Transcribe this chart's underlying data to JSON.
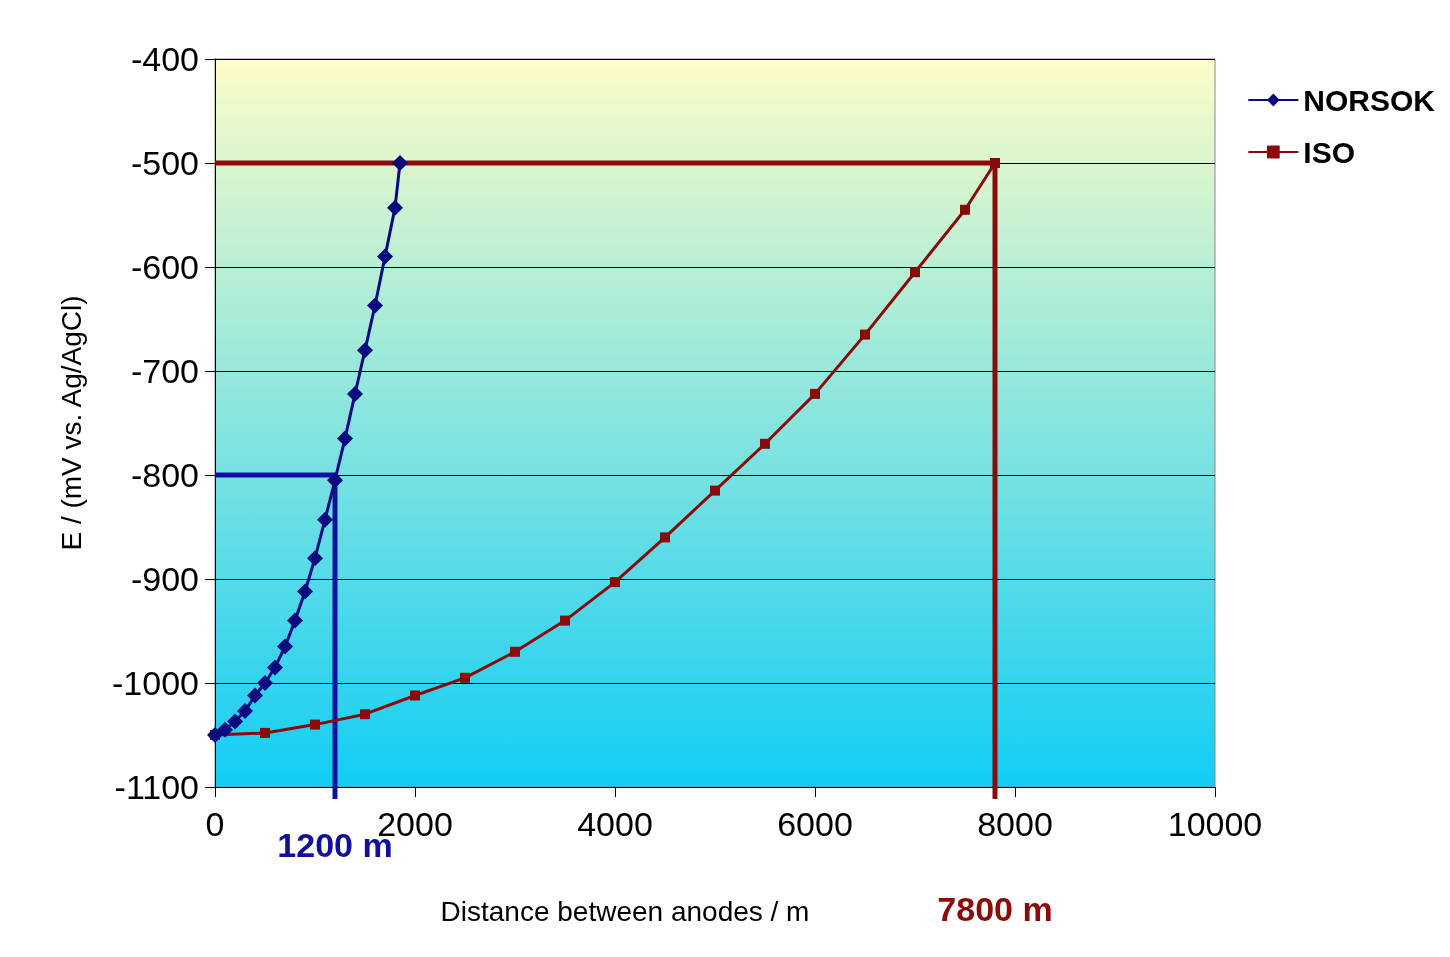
{
  "chart_data": {
    "type": "line",
    "xlabel": "Distance between anodes / m",
    "ylabel": "E / (mV vs. Ag/AgCl)",
    "xlim": [
      0,
      10000
    ],
    "xticks": [
      0,
      2000,
      4000,
      6000,
      8000,
      10000
    ],
    "ylim": [
      -1100,
      -400
    ],
    "yticks": [
      -1100,
      -1000,
      -900,
      -800,
      -700,
      -600,
      -500,
      -400
    ],
    "grid": "y",
    "legend": "top right",
    "series": [
      {
        "name": "NORSOK",
        "color": "#0a0a80",
        "marker": "diamond",
        "x": [
          0,
          100,
          200,
          300,
          400,
          500,
          600,
          700,
          800,
          900,
          1000,
          1100,
          1200,
          1300,
          1400,
          1500,
          1600,
          1700,
          1800,
          1850
        ],
        "values": [
          -1050,
          -1045,
          -1037,
          -1027,
          -1012,
          -1000,
          -985,
          -965,
          -940,
          -912,
          -880,
          -843,
          -805,
          -765,
          -722,
          -680,
          -637,
          -590,
          -543,
          -500
        ]
      },
      {
        "name": "ISO",
        "color": "#8b0a0a",
        "marker": "square",
        "x": [
          0,
          500,
          1000,
          1500,
          2000,
          2500,
          3000,
          3500,
          4000,
          4500,
          5000,
          5500,
          6000,
          6500,
          7000,
          7500,
          7800
        ],
        "values": [
          -1050,
          -1048,
          -1040,
          -1030,
          -1012,
          -995,
          -970,
          -940,
          -903,
          -860,
          -815,
          -770,
          -722,
          -665,
          -605,
          -545,
          -500
        ]
      }
    ],
    "ref_lines": [
      {
        "axis": "y",
        "value": -800,
        "color": "#1010a0"
      },
      {
        "axis": "x",
        "value": 1200,
        "label": "1200 m",
        "color": "#1010a0"
      },
      {
        "axis": "y",
        "value": -500,
        "color": "#8b0a0a"
      },
      {
        "axis": "x",
        "value": 7800,
        "label": "7800 m",
        "color": "#8b0a0a"
      }
    ]
  }
}
